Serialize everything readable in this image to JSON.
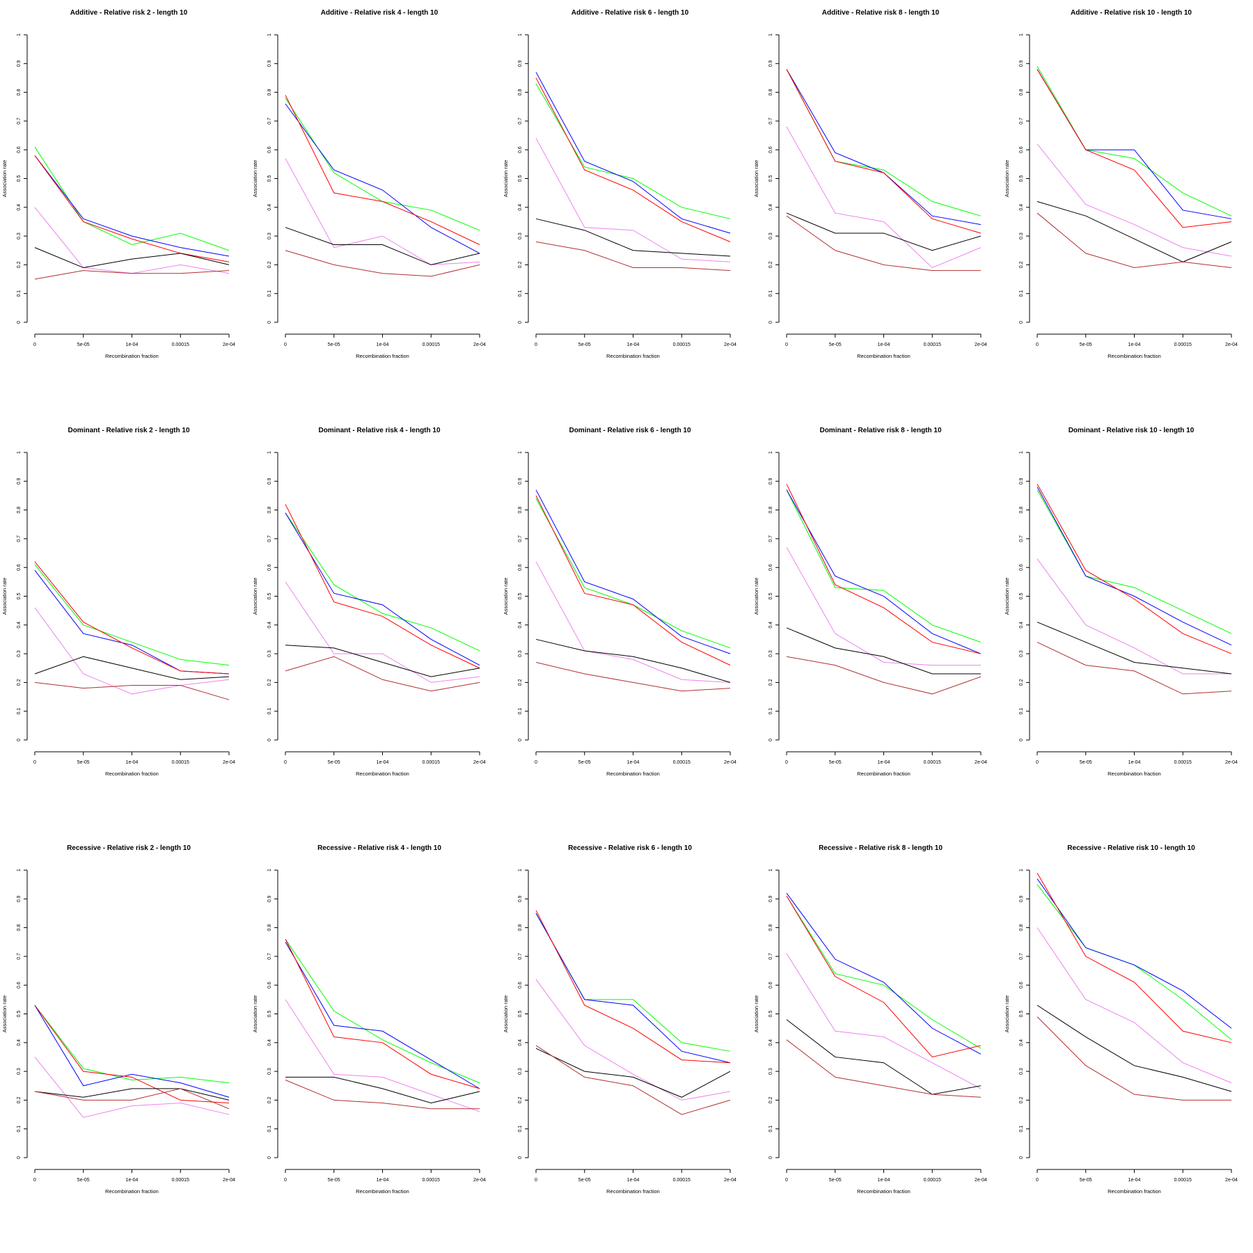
{
  "chart_data": {
    "type": "line",
    "layout": "3 rows x 5 columns",
    "xlabel": "Recombination fraction",
    "ylabel": "Association rate",
    "categories": [
      "0",
      "5e-05",
      "1e-04",
      "0.00015",
      "2e-04"
    ],
    "ylim": [
      0,
      1
    ],
    "yticks": [
      "0",
      "0.1",
      "0.2",
      "0.3",
      "0.4",
      "0.5",
      "0.6",
      "0.7",
      "0.8",
      "0.9",
      "1"
    ],
    "grid": false,
    "legend": "none",
    "colors": {
      "green": "#00ff00",
      "blue": "#0000ff",
      "red": "#ff0000",
      "violet": "#ee82ee",
      "black": "#000000",
      "brown": "#b03030"
    },
    "panels": [
      {
        "title": "Additive  - Relative risk 2 - length 10",
        "series": {
          "green": [
            0.61,
            0.35,
            0.27,
            0.31,
            0.25
          ],
          "blue": [
            0.58,
            0.36,
            0.3,
            0.26,
            0.23
          ],
          "red": [
            0.58,
            0.35,
            0.29,
            0.24,
            0.21
          ],
          "violet": [
            0.4,
            0.19,
            0.17,
            0.2,
            0.17
          ],
          "black": [
            0.26,
            0.19,
            0.22,
            0.24,
            0.2
          ],
          "brown": [
            0.15,
            0.18,
            0.17,
            0.17,
            0.18
          ]
        }
      },
      {
        "title": "Additive  - Relative risk 4 - length 10",
        "series": {
          "green": [
            0.78,
            0.52,
            0.42,
            0.39,
            0.32
          ],
          "blue": [
            0.76,
            0.53,
            0.46,
            0.33,
            0.24
          ],
          "red": [
            0.79,
            0.45,
            0.42,
            0.35,
            0.27
          ],
          "violet": [
            0.57,
            0.26,
            0.3,
            0.2,
            0.21
          ],
          "black": [
            0.33,
            0.27,
            0.27,
            0.2,
            0.24
          ],
          "brown": [
            0.25,
            0.2,
            0.17,
            0.16,
            0.2
          ]
        }
      },
      {
        "title": "Additive  - Relative risk 6 - length 10",
        "series": {
          "green": [
            0.83,
            0.54,
            0.5,
            0.4,
            0.36
          ],
          "blue": [
            0.87,
            0.56,
            0.49,
            0.36,
            0.31
          ],
          "red": [
            0.85,
            0.53,
            0.46,
            0.35,
            0.28
          ],
          "violet": [
            0.64,
            0.33,
            0.32,
            0.22,
            0.21
          ],
          "black": [
            0.36,
            0.32,
            0.25,
            0.24,
            0.23
          ],
          "brown": [
            0.28,
            0.25,
            0.19,
            0.19,
            0.18
          ]
        }
      },
      {
        "title": "Additive  - Relative risk 8 - length 10",
        "series": {
          "green": [
            0.88,
            0.56,
            0.53,
            0.42,
            0.37
          ],
          "blue": [
            0.88,
            0.59,
            0.52,
            0.37,
            0.34
          ],
          "red": [
            0.88,
            0.56,
            0.52,
            0.36,
            0.31
          ],
          "violet": [
            0.68,
            0.38,
            0.35,
            0.19,
            0.26
          ],
          "black": [
            0.38,
            0.31,
            0.31,
            0.25,
            0.3
          ],
          "brown": [
            0.37,
            0.25,
            0.2,
            0.18,
            0.18
          ]
        }
      },
      {
        "title": "Additive  - Relative risk 10 - length 10",
        "series": {
          "green": [
            0.89,
            0.6,
            0.57,
            0.45,
            0.37
          ],
          "blue": [
            0.88,
            0.6,
            0.6,
            0.39,
            0.36
          ],
          "red": [
            0.88,
            0.6,
            0.53,
            0.33,
            0.35
          ],
          "violet": [
            0.62,
            0.41,
            0.34,
            0.26,
            0.23
          ],
          "black": [
            0.42,
            0.37,
            0.29,
            0.21,
            0.28
          ],
          "brown": [
            0.38,
            0.24,
            0.19,
            0.21,
            0.19
          ]
        }
      },
      {
        "title": "Dominant  - Relative risk 2 - length 10",
        "series": {
          "green": [
            0.61,
            0.4,
            0.34,
            0.28,
            0.26
          ],
          "blue": [
            0.59,
            0.37,
            0.33,
            0.24,
            0.23
          ],
          "red": [
            0.62,
            0.41,
            0.32,
            0.24,
            0.23
          ],
          "violet": [
            0.46,
            0.23,
            0.16,
            0.19,
            0.21
          ],
          "black": [
            0.23,
            0.29,
            0.25,
            0.21,
            0.22
          ],
          "brown": [
            0.2,
            0.18,
            0.19,
            0.19,
            0.14
          ]
        }
      },
      {
        "title": "Dominant  - Relative risk 4 - length 10",
        "series": {
          "green": [
            0.79,
            0.54,
            0.44,
            0.39,
            0.31
          ],
          "blue": [
            0.79,
            0.51,
            0.47,
            0.35,
            0.26
          ],
          "red": [
            0.82,
            0.48,
            0.43,
            0.33,
            0.25
          ],
          "violet": [
            0.55,
            0.3,
            0.3,
            0.2,
            0.22
          ],
          "black": [
            0.33,
            0.32,
            0.27,
            0.22,
            0.25
          ],
          "brown": [
            0.24,
            0.29,
            0.21,
            0.17,
            0.2
          ]
        }
      },
      {
        "title": "Dominant  - Relative risk 6 - length 10",
        "series": {
          "green": [
            0.84,
            0.53,
            0.47,
            0.38,
            0.32
          ],
          "blue": [
            0.87,
            0.55,
            0.49,
            0.36,
            0.3
          ],
          "red": [
            0.85,
            0.51,
            0.47,
            0.34,
            0.26
          ],
          "violet": [
            0.62,
            0.31,
            0.28,
            0.21,
            0.2
          ],
          "black": [
            0.35,
            0.31,
            0.29,
            0.25,
            0.2
          ],
          "brown": [
            0.27,
            0.23,
            0.2,
            0.17,
            0.18
          ]
        }
      },
      {
        "title": "Dominant  - Relative risk 8 - length 10",
        "series": {
          "green": [
            0.87,
            0.53,
            0.52,
            0.4,
            0.34
          ],
          "blue": [
            0.87,
            0.57,
            0.5,
            0.37,
            0.3
          ],
          "red": [
            0.89,
            0.54,
            0.46,
            0.34,
            0.3
          ],
          "violet": [
            0.67,
            0.37,
            0.27,
            0.26,
            0.26
          ],
          "black": [
            0.39,
            0.32,
            0.29,
            0.23,
            0.23
          ],
          "brown": [
            0.29,
            0.26,
            0.2,
            0.16,
            0.22
          ]
        }
      },
      {
        "title": "Dominant  - Relative risk 10 - length 10",
        "series": {
          "green": [
            0.87,
            0.57,
            0.53,
            0.45,
            0.37
          ],
          "blue": [
            0.88,
            0.57,
            0.5,
            0.41,
            0.33
          ],
          "red": [
            0.89,
            0.59,
            0.49,
            0.37,
            0.3
          ],
          "violet": [
            0.63,
            0.4,
            0.32,
            0.23,
            0.23
          ],
          "black": [
            0.41,
            0.34,
            0.27,
            0.25,
            0.23
          ],
          "brown": [
            0.34,
            0.26,
            0.24,
            0.16,
            0.17
          ]
        }
      },
      {
        "title": "Recessive  - Relative risk 2 - length 10",
        "series": {
          "green": [
            0.53,
            0.31,
            0.27,
            0.28,
            0.26
          ],
          "blue": [
            0.53,
            0.25,
            0.29,
            0.26,
            0.21
          ],
          "red": [
            0.53,
            0.3,
            0.28,
            0.2,
            0.19
          ],
          "violet": [
            0.35,
            0.14,
            0.18,
            0.19,
            0.15
          ],
          "black": [
            0.23,
            0.21,
            0.24,
            0.24,
            0.2
          ],
          "brown": [
            0.23,
            0.2,
            0.2,
            0.24,
            0.17
          ]
        }
      },
      {
        "title": "Recessive  - Relative risk 4 - length 10",
        "series": {
          "green": [
            0.76,
            0.51,
            0.41,
            0.33,
            0.26
          ],
          "blue": [
            0.75,
            0.46,
            0.44,
            0.34,
            0.24
          ],
          "red": [
            0.76,
            0.42,
            0.4,
            0.29,
            0.24
          ],
          "violet": [
            0.55,
            0.29,
            0.28,
            0.22,
            0.16
          ],
          "black": [
            0.28,
            0.28,
            0.24,
            0.19,
            0.23
          ],
          "brown": [
            0.27,
            0.2,
            0.19,
            0.17,
            0.17
          ]
        }
      },
      {
        "title": "Recessive  - Relative risk 6 - length 10",
        "series": {
          "green": [
            0.85,
            0.55,
            0.55,
            0.4,
            0.37
          ],
          "blue": [
            0.85,
            0.55,
            0.53,
            0.37,
            0.33
          ],
          "red": [
            0.86,
            0.53,
            0.45,
            0.34,
            0.33
          ],
          "violet": [
            0.62,
            0.39,
            0.29,
            0.2,
            0.23
          ],
          "black": [
            0.38,
            0.3,
            0.28,
            0.21,
            0.3
          ],
          "brown": [
            0.39,
            0.28,
            0.25,
            0.15,
            0.2
          ]
        }
      },
      {
        "title": "Recessive  - Relative risk 8 - length 10",
        "series": {
          "green": [
            0.91,
            0.64,
            0.6,
            0.48,
            0.38
          ],
          "blue": [
            0.92,
            0.69,
            0.61,
            0.45,
            0.36
          ],
          "red": [
            0.91,
            0.63,
            0.54,
            0.35,
            0.39
          ],
          "violet": [
            0.71,
            0.44,
            0.42,
            0.33,
            0.24
          ],
          "black": [
            0.48,
            0.35,
            0.33,
            0.22,
            0.25
          ],
          "brown": [
            0.41,
            0.28,
            0.25,
            0.22,
            0.21
          ]
        }
      },
      {
        "title": "Recessive  - Relative risk 10 - length 10",
        "series": {
          "green": [
            0.95,
            0.73,
            0.67,
            0.55,
            0.41
          ],
          "blue": [
            0.97,
            0.73,
            0.67,
            0.58,
            0.45
          ],
          "red": [
            0.99,
            0.7,
            0.61,
            0.44,
            0.4
          ],
          "violet": [
            0.8,
            0.55,
            0.47,
            0.33,
            0.26
          ],
          "black": [
            0.53,
            0.42,
            0.32,
            0.28,
            0.23
          ],
          "brown": [
            0.49,
            0.32,
            0.22,
            0.2,
            0.2
          ]
        }
      }
    ]
  }
}
